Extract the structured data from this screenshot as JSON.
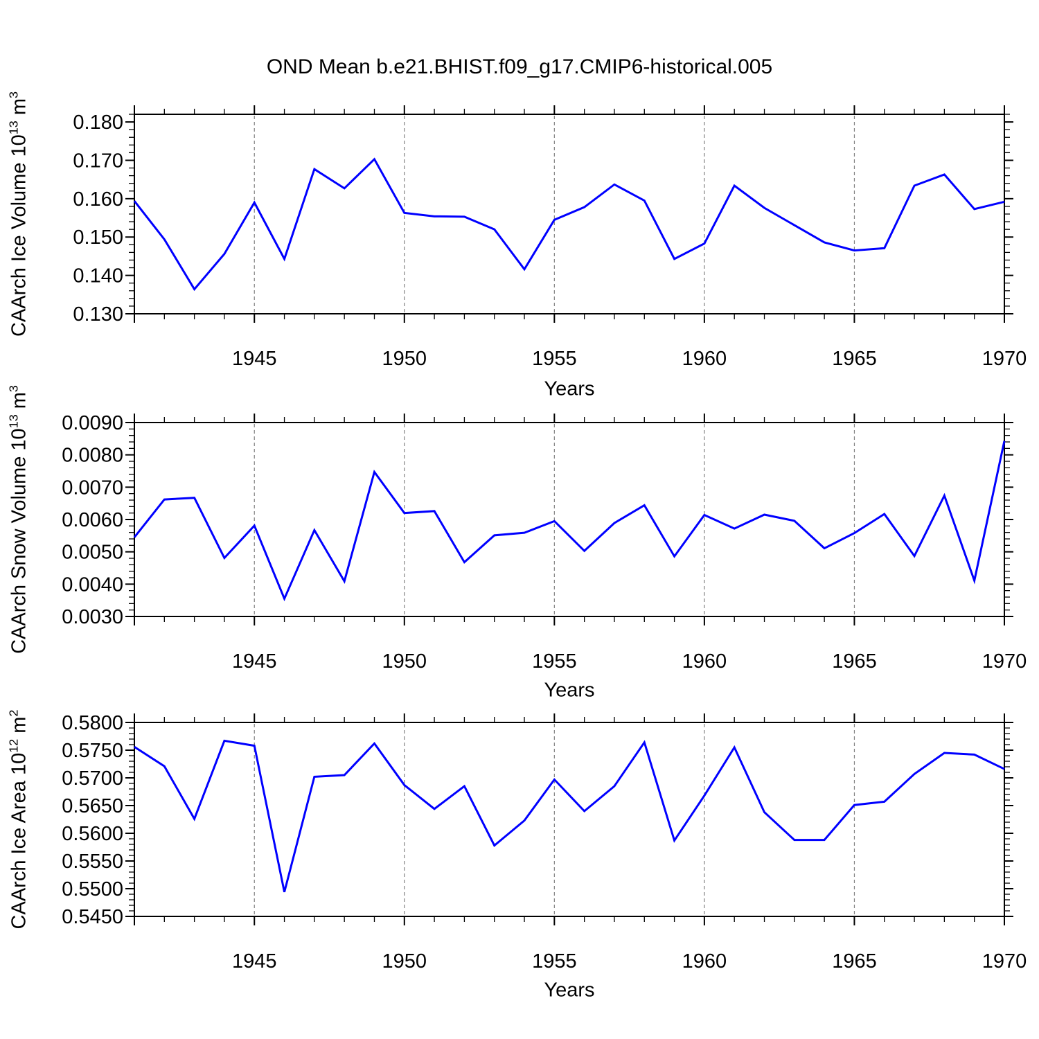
{
  "title": "OND Mean b.e21.BHIST.f09_g17.CMIP6-historical.005",
  "colors": {
    "line": "#0000ff",
    "grid": "#808080",
    "axis": "#000000",
    "background": "#ffffff"
  },
  "chart_data": [
    {
      "type": "line",
      "name": "caarch-ice-volume",
      "ylabel": {
        "pre": "CAArch Ice Volume 10",
        "exp": "13",
        "unit": " m",
        "unit_exp": "3"
      },
      "xlabel": "Years",
      "x": [
        1941,
        1942,
        1943,
        1944,
        1945,
        1946,
        1947,
        1948,
        1949,
        1950,
        1951,
        1952,
        1953,
        1954,
        1955,
        1956,
        1957,
        1958,
        1959,
        1960,
        1961,
        1962,
        1963,
        1964,
        1965,
        1966,
        1967,
        1968,
        1969,
        1970
      ],
      "values": [
        0.1594,
        0.1494,
        0.1364,
        0.1456,
        0.159,
        0.1443,
        0.1677,
        0.1627,
        0.1703,
        0.1563,
        0.1554,
        0.1553,
        0.152,
        0.1416,
        0.1545,
        0.1578,
        0.1637,
        0.1595,
        0.1443,
        0.1483,
        0.1634,
        0.1576,
        0.1531,
        0.1486,
        0.1465,
        0.1471,
        0.1634,
        0.1663,
        0.1573,
        0.1592
      ],
      "xlim": [
        1941,
        1970
      ],
      "ylim": [
        0.13,
        0.182
      ],
      "yticks": [
        0.13,
        0.14,
        0.15,
        0.16,
        0.17,
        0.18
      ],
      "ytick_labels": [
        "0.130",
        "0.140",
        "0.150",
        "0.160",
        "0.170",
        "0.180"
      ],
      "ytick_minor_step": 0.002,
      "xticks": [
        1945,
        1950,
        1955,
        1960,
        1965,
        1970
      ],
      "xtick_labels": [
        "1945",
        "1950",
        "1955",
        "1960",
        "1965",
        "1970"
      ],
      "xtick_minor_step": 1,
      "xgrid": [
        1945,
        1950,
        1955,
        1960,
        1965
      ],
      "grid": "vertical-dashed",
      "legend": null
    },
    {
      "type": "line",
      "name": "caarch-snow-volume",
      "ylabel": {
        "pre": "CAArch Snow Volume 10",
        "exp": "13",
        "unit": " m",
        "unit_exp": "3"
      },
      "xlabel": "Years",
      "x": [
        1941,
        1942,
        1943,
        1944,
        1945,
        1946,
        1947,
        1948,
        1949,
        1950,
        1951,
        1952,
        1953,
        1954,
        1955,
        1956,
        1957,
        1958,
        1959,
        1960,
        1961,
        1962,
        1963,
        1964,
        1965,
        1966,
        1967,
        1968,
        1969,
        1970
      ],
      "values": [
        0.00545,
        0.00662,
        0.00667,
        0.00481,
        0.00581,
        0.00355,
        0.00567,
        0.00409,
        0.00747,
        0.0062,
        0.00626,
        0.00468,
        0.00551,
        0.00559,
        0.00595,
        0.00503,
        0.00589,
        0.00644,
        0.00486,
        0.00614,
        0.00572,
        0.00615,
        0.00596,
        0.00511,
        0.00558,
        0.00617,
        0.00487,
        0.00674,
        0.00411,
        0.00843
      ],
      "xlim": [
        1941,
        1970
      ],
      "ylim": [
        0.003,
        0.009
      ],
      "yticks": [
        0.003,
        0.004,
        0.005,
        0.006,
        0.007,
        0.008,
        0.009
      ],
      "ytick_labels": [
        "0.0030",
        "0.0040",
        "0.0050",
        "0.0060",
        "0.0070",
        "0.0080",
        "0.0090"
      ],
      "ytick_minor_step": 0.0002,
      "xticks": [
        1945,
        1950,
        1955,
        1960,
        1965,
        1970
      ],
      "xtick_labels": [
        "1945",
        "1950",
        "1955",
        "1960",
        "1965",
        "1970"
      ],
      "xtick_minor_step": 1,
      "xgrid": [
        1945,
        1950,
        1955,
        1960,
        1965
      ],
      "grid": "vertical-dashed",
      "legend": null
    },
    {
      "type": "line",
      "name": "caarch-ice-area",
      "ylabel": {
        "pre": "CAArch Ice Area 10",
        "exp": "12",
        "unit": " m",
        "unit_exp": "2"
      },
      "xlabel": "Years",
      "x": [
        1941,
        1942,
        1943,
        1944,
        1945,
        1946,
        1947,
        1948,
        1949,
        1950,
        1951,
        1952,
        1953,
        1954,
        1955,
        1956,
        1957,
        1958,
        1959,
        1960,
        1961,
        1962,
        1963,
        1964,
        1965,
        1966,
        1967,
        1968,
        1969,
        1970
      ],
      "values": [
        0.5756,
        0.5721,
        0.5626,
        0.5767,
        0.5758,
        0.5494,
        0.5702,
        0.5705,
        0.5762,
        0.5687,
        0.5644,
        0.5685,
        0.5578,
        0.5623,
        0.5697,
        0.564,
        0.5685,
        0.5764,
        0.5587,
        0.5668,
        0.5755,
        0.5638,
        0.5588,
        0.5588,
        0.5651,
        0.5657,
        0.5707,
        0.5745,
        0.5742,
        0.5716
      ],
      "xlim": [
        1941,
        1970
      ],
      "ylim": [
        0.545,
        0.58
      ],
      "yticks": [
        0.545,
        0.55,
        0.555,
        0.56,
        0.565,
        0.57,
        0.575,
        0.58
      ],
      "ytick_labels": [
        "0.5450",
        "0.5500",
        "0.5550",
        "0.5600",
        "0.5650",
        "0.5700",
        "0.5750",
        "0.5800"
      ],
      "ytick_minor_step": 0.001,
      "xticks": [
        1945,
        1950,
        1955,
        1960,
        1965,
        1970
      ],
      "xtick_labels": [
        "1945",
        "1950",
        "1955",
        "1960",
        "1965",
        "1970"
      ],
      "xtick_minor_step": 1,
      "xgrid": [
        1945,
        1950,
        1955,
        1960,
        1965
      ],
      "grid": "vertical-dashed",
      "legend": null
    }
  ]
}
